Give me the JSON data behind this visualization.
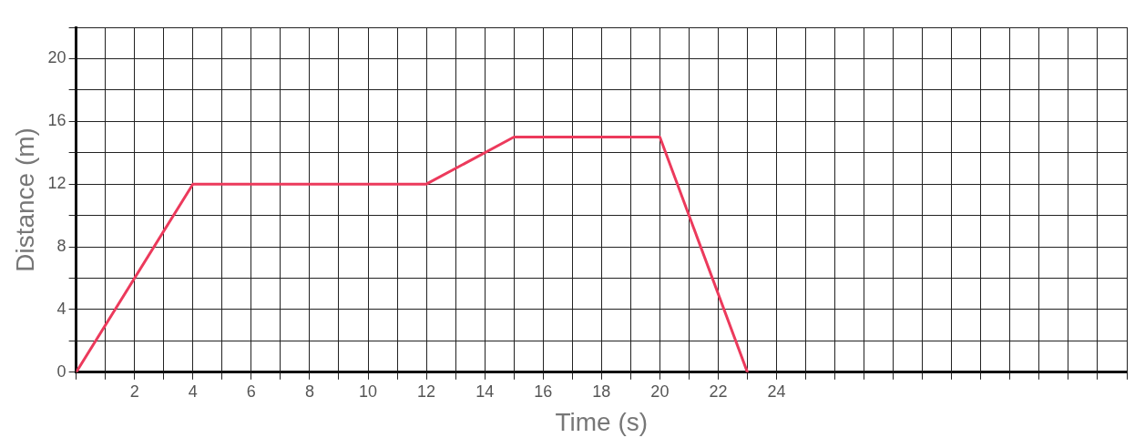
{
  "chart_data": {
    "type": "line",
    "xlabel": "Time (s)",
    "ylabel": "Distance (m)",
    "x": [
      0,
      4,
      12,
      15,
      20,
      23
    ],
    "series": [
      {
        "color": "#ec3a5c",
        "values": [
          0,
          12,
          12,
          15,
          15,
          0
        ]
      }
    ],
    "xlim": [
      0,
      36
    ],
    "ylim": [
      0,
      22
    ],
    "xticks": [
      {
        "value": 0,
        "label": null
      },
      {
        "value": 1,
        "label": null
      },
      2,
      {
        "value": 3,
        "label": null
      },
      4,
      {
        "value": 5,
        "label": null
      },
      6,
      {
        "value": 7,
        "label": null
      },
      8,
      {
        "value": 9,
        "label": null
      },
      10,
      {
        "value": 11,
        "label": null
      },
      12,
      {
        "value": 13,
        "label": null
      },
      14,
      {
        "value": 15,
        "label": null
      },
      16,
      {
        "value": 17,
        "label": null
      },
      18,
      {
        "value": 19,
        "label": null
      },
      20,
      {
        "value": 21,
        "label": null
      },
      22,
      {
        "value": 23,
        "label": null
      },
      24,
      {
        "value": 25,
        "label": null
      },
      {
        "value": 26,
        "label": null
      },
      {
        "value": 27,
        "label": null
      },
      {
        "value": 28,
        "label": null
      },
      {
        "value": 29,
        "label": null
      },
      {
        "value": 30,
        "label": null
      },
      {
        "value": 31,
        "label": null
      },
      {
        "value": 32,
        "label": null
      },
      {
        "value": 33,
        "label": null
      },
      {
        "value": 34,
        "label": null
      },
      {
        "value": 35,
        "label": null
      },
      {
        "value": 36,
        "label": null
      }
    ],
    "yticks": [
      0,
      {
        "value": 2,
        "label": null
      },
      4,
      {
        "value": 6,
        "label": null
      },
      8,
      {
        "value": 10,
        "label": null
      },
      12,
      {
        "value": 14,
        "label": null
      },
      16,
      {
        "value": 18,
        "label": null
      },
      20,
      {
        "value": 22,
        "label": null
      }
    ],
    "grid": true,
    "legend": false,
    "marker": "none",
    "line_style": "solid"
  }
}
